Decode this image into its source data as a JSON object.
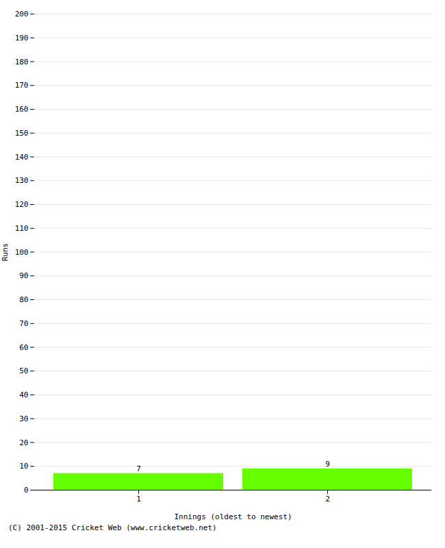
{
  "chart_data": {
    "type": "bar",
    "categories": [
      1,
      2
    ],
    "values": [
      7,
      9
    ],
    "color": "#66ff00",
    "xlabel": "Innings (oldest to newest)",
    "ylabel": "Runs",
    "ylim": [
      0,
      200
    ],
    "yticks": [
      0,
      10,
      20,
      30,
      40,
      50,
      60,
      70,
      80,
      90,
      100,
      110,
      120,
      130,
      140,
      150,
      160,
      170,
      180,
      190,
      200
    ],
    "grid": true,
    "data_labels": true,
    "annotations": [
      "(C) 2001-2015 Cricket Web (www.cricketweb.net)"
    ]
  }
}
